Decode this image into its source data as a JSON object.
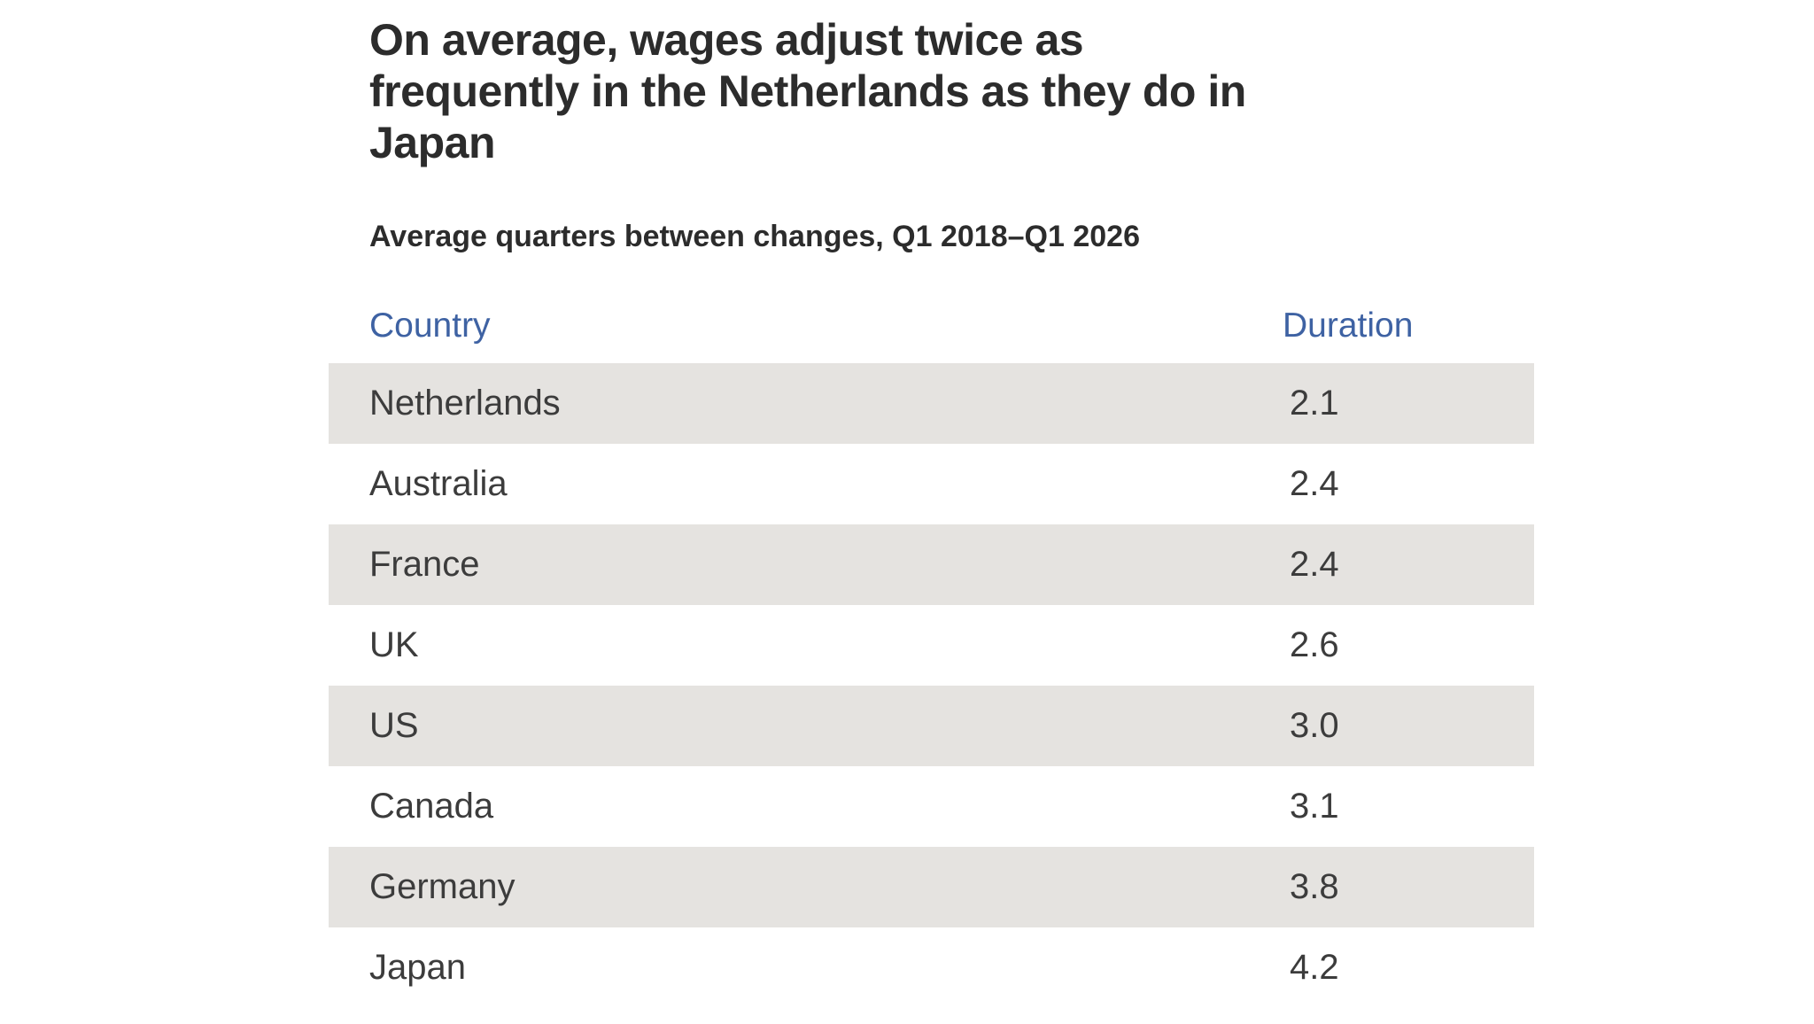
{
  "title": "On average, wages adjust twice as\nfrequently in the Netherlands as they do in\nJapan",
  "subtitle": "Average quarters between changes, Q1 2018–Q1 2026",
  "colors": {
    "header_blue": "#3e62a3",
    "stripe_gray": "#e5e3e0",
    "title_text": "#2c2c2c",
    "body_text": "#3c3c3c",
    "page_bg": "#ffffff"
  },
  "table": {
    "country_header": "Country",
    "duration_header": "Duration",
    "rows": [
      {
        "country": "Netherlands",
        "duration": "2.1"
      },
      {
        "country": "Australia",
        "duration": "2.4"
      },
      {
        "country": "France",
        "duration": "2.4"
      },
      {
        "country": "UK",
        "duration": "2.6"
      },
      {
        "country": "US",
        "duration": "3.0"
      },
      {
        "country": "Canada",
        "duration": "3.1"
      },
      {
        "country": "Germany",
        "duration": "3.8"
      },
      {
        "country": "Japan",
        "duration": "4.2"
      }
    ]
  },
  "chart_data": {
    "type": "table",
    "title": "On average, wages adjust twice as frequently in the Netherlands as they do in Japan",
    "subtitle": "Average quarters between changes, Q1 2018–Q1 2026",
    "columns": [
      "Country",
      "Duration"
    ],
    "categories": [
      "Netherlands",
      "Australia",
      "France",
      "UK",
      "US",
      "Canada",
      "Germany",
      "Japan"
    ],
    "values": [
      2.1,
      2.4,
      2.4,
      2.6,
      3.0,
      3.1,
      3.8,
      4.2
    ],
    "unit": "quarters between wage changes",
    "layout": {
      "striped_rows": true,
      "first_row_striped": true,
      "value_alignment": "left"
    }
  }
}
